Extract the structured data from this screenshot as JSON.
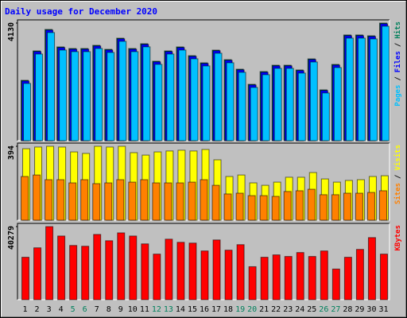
{
  "chart_data": [
    {
      "type": "bar",
      "title": "Daily usage for December 2020",
      "series": [
        {
          "name": "Hits",
          "color": "#00805c",
          "values": [
            2121,
            3153,
            3907,
            3293,
            3237,
            3237,
            3349,
            3209,
            3600,
            3237,
            3405,
            2791,
            3153,
            3293,
            2986,
            2735,
            3181,
            2846,
            2512,
            1981,
            2428,
            2651,
            2651,
            2484,
            2874,
            1786,
            2679,
            3712,
            3712,
            3684,
            4130
          ]
        },
        {
          "name": "Files",
          "color": "#0000ff",
          "values": [
            2096,
            3128,
            3882,
            3268,
            3212,
            3212,
            3324,
            3184,
            3575,
            3212,
            3380,
            2766,
            3128,
            3268,
            2961,
            2710,
            3156,
            2821,
            2487,
            1956,
            2403,
            2626,
            2626,
            2459,
            2849,
            1761,
            2654,
            3687,
            3687,
            3659,
            4105
          ]
        },
        {
          "name": "Pages",
          "color": "#00c0ff",
          "values": [
            2011,
            3043,
            3797,
            3183,
            3127,
            3127,
            3239,
            3099,
            3490,
            3127,
            3295,
            2681,
            3043,
            3183,
            2876,
            2625,
            3071,
            2736,
            2402,
            1871,
            2318,
            2541,
            2541,
            2374,
            2764,
            1676,
            2569,
            3602,
            3602,
            3574,
            4020
          ]
        }
      ],
      "ylim": [
        0,
        4130
      ],
      "yticks": [
        4130
      ],
      "grid": false,
      "legend_separator": "/"
    },
    {
      "type": "bar",
      "series": [
        {
          "name": "Visits",
          "color": "#ffff00",
          "values": [
            381,
            390,
            394,
            390,
            364,
            356,
            394,
            390,
            394,
            360,
            347,
            364,
            369,
            373,
            369,
            377,
            322,
            233,
            241,
            199,
            186,
            203,
            229,
            229,
            254,
            220,
            203,
            212,
            216,
            233,
            237
          ]
        },
        {
          "name": "Sites",
          "color": "#ff8000",
          "values": [
            233,
            241,
            216,
            216,
            199,
            216,
            195,
            199,
            216,
            203,
            216,
            199,
            199,
            199,
            203,
            216,
            186,
            140,
            144,
            131,
            131,
            127,
            153,
            157,
            165,
            136,
            136,
            144,
            144,
            148,
            157
          ]
        }
      ],
      "ylim": [
        0,
        394
      ],
      "yticks": [
        394
      ],
      "grid": false,
      "legend_separator": "/"
    },
    {
      "type": "bar",
      "categories": [
        "1",
        "2",
        "3",
        "4",
        "5",
        "6",
        "7",
        "8",
        "9",
        "10",
        "11",
        "12",
        "13",
        "14",
        "15",
        "16",
        "17",
        "18",
        "19",
        "20",
        "21",
        "22",
        "23",
        "24",
        "25",
        "26",
        "27",
        "28",
        "29",
        "30",
        "31"
      ],
      "category_colors": [
        "#000000",
        "#000000",
        "#000000",
        "#000000",
        "#00805c",
        "#00805c",
        "#000000",
        "#000000",
        "#000000",
        "#000000",
        "#000000",
        "#00805c",
        "#00805c",
        "#000000",
        "#000000",
        "#000000",
        "#000000",
        "#000000",
        "#00805c",
        "#00805c",
        "#000000",
        "#000000",
        "#000000",
        "#000000",
        "#000000",
        "#00805c",
        "#00805c",
        "#000000",
        "#000000",
        "#000000",
        "#000000"
      ],
      "series": [
        {
          "name": "KBytes",
          "color": "#ff0000",
          "values": [
            23389,
            28585,
            40279,
            35081,
            29884,
            29451,
            35948,
            32483,
            36814,
            35081,
            30751,
            25120,
            33349,
            31617,
            31184,
            26853,
            32916,
            27286,
            30318,
            18191,
            23389,
            24687,
            23821,
            25987,
            23821,
            26853,
            16891,
            23389,
            27719,
            34216,
            25120
          ]
        }
      ],
      "ylim": [
        0,
        40279
      ],
      "yticks": [
        40279
      ],
      "grid": false
    }
  ]
}
